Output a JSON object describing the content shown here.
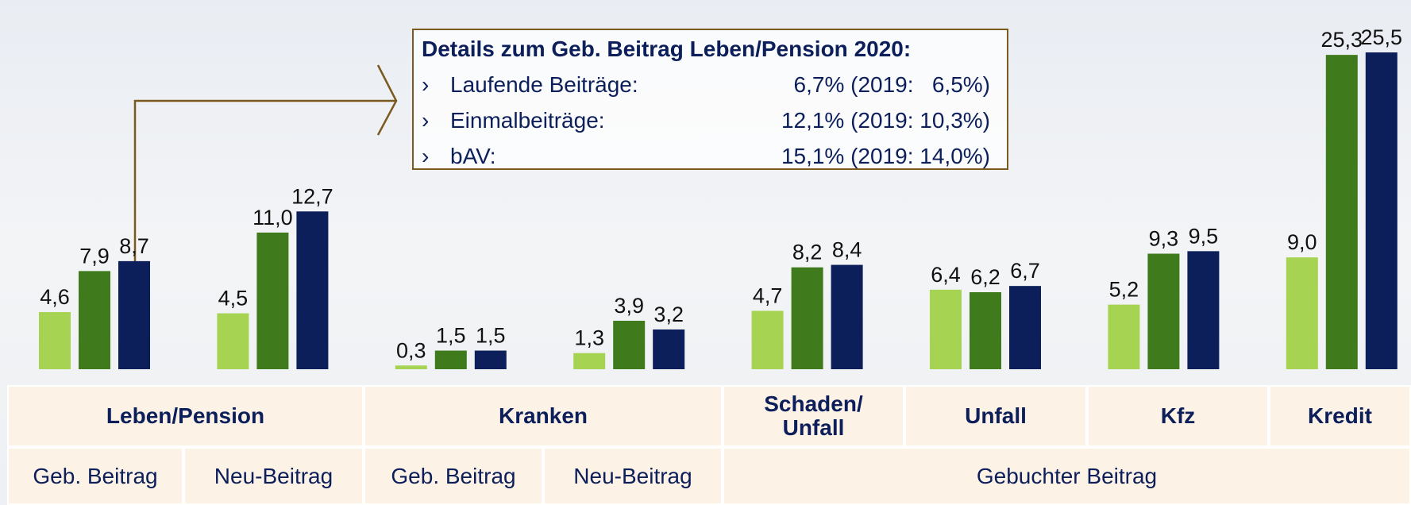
{
  "chart_data": {
    "type": "bar",
    "categories": [
      null,
      null,
      null,
      null,
      null,
      null,
      null,
      null
    ],
    "series": [
      {
        "color": "#a6d452",
        "values": [
          4.6,
          4.5,
          0.3,
          1.3,
          4.7,
          6.4,
          5.2,
          9.0
        ],
        "value_labels": [
          "4,6",
          "4,5",
          "0,3",
          "1,3",
          "4,7",
          "6,4",
          "5,2",
          "9,0"
        ]
      },
      {
        "color": "#3f7a1c",
        "values": [
          7.9,
          11.0,
          1.5,
          3.9,
          8.2,
          6.2,
          9.3,
          25.3
        ],
        "value_labels": [
          "7,9",
          "11,0",
          "1,5",
          "3,9",
          "8,2",
          "6,2",
          "9,3",
          "25,3"
        ]
      },
      {
        "color": "#0c1f5a",
        "values": [
          8.7,
          12.7,
          1.5,
          3.2,
          8.4,
          6.7,
          9.5,
          25.5
        ],
        "value_labels": [
          "8,7",
          "12,7",
          "1,5",
          "3,2",
          "8,4",
          "6,7",
          "9,5",
          "25,5"
        ]
      }
    ]
  },
  "details": {
    "title": "Details zum Geb. Beitrag Leben/Pension 2020:",
    "rows": [
      {
        "bullet": "›",
        "label": "Laufende Beiträge:",
        "value": "6,7% (2019:   6,5%)"
      },
      {
        "bullet": "›",
        "label": "Einmalbeiträge:",
        "value": "12,1% (2019: 10,3%)"
      },
      {
        "bullet": "›",
        "label": "bAV:",
        "value": "15,1% (2019: 14,0%)"
      }
    ]
  },
  "table": {
    "top_row": [
      "Leben/Pension",
      "Kranken",
      "Schaden/\nUnfall",
      "Unfall",
      "Kfz",
      "Kredit"
    ],
    "bottom_row": [
      "Geb. Beitrag",
      "Neu-Beitrag",
      "Geb. Beitrag",
      "Neu-Beitrag",
      "Gebuchter Beitrag"
    ]
  }
}
